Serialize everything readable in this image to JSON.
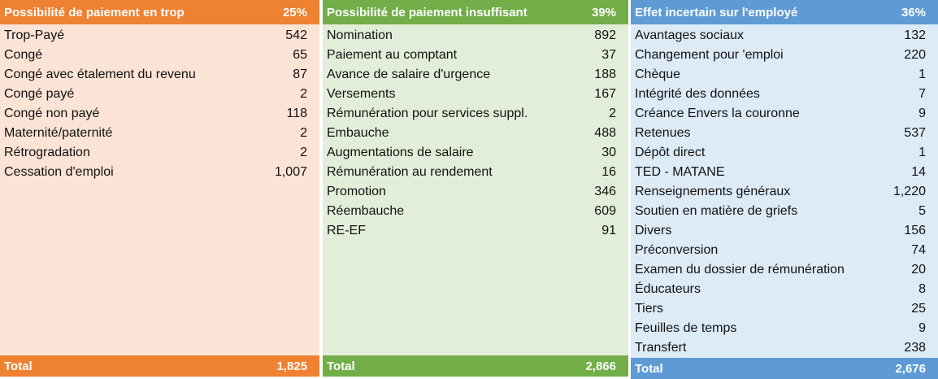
{
  "panels": [
    {
      "title": "Possibilité de paiement en trop",
      "percent": "25%",
      "rows": [
        {
          "label": "Trop-Payé",
          "value": "542"
        },
        {
          "label": "Congé",
          "value": "65"
        },
        {
          "label": "Congé avec étalement du revenu",
          "value": "87"
        },
        {
          "label": "Congé payé",
          "value": "2"
        },
        {
          "label": "Congé non payé",
          "value": "118"
        },
        {
          "label": "Maternité/paternité",
          "value": "2"
        },
        {
          "label": "Rétrogradation",
          "value": "2"
        },
        {
          "label": "Cessation d'emploi",
          "value": "1,007"
        }
      ],
      "total_label": "Total",
      "total_value": "1,825"
    },
    {
      "title": "Possibilité de paiement insuffisant",
      "percent": "39%",
      "rows": [
        {
          "label": "Nomination",
          "value": "892"
        },
        {
          "label": "Paiement au comptant",
          "value": "37"
        },
        {
          "label": "Avance de salaire d'urgence",
          "value": "188"
        },
        {
          "label": "Versements",
          "value": "167"
        },
        {
          "label": "Rémunération pour services suppl.",
          "value": "2"
        },
        {
          "label": "Embauche",
          "value": "488"
        },
        {
          "label": "Augmentations de salaire",
          "value": "30"
        },
        {
          "label": "Rémunération au rendement",
          "value": "16"
        },
        {
          "label": "Promotion",
          "value": "346"
        },
        {
          "label": "Réembauche",
          "value": "609"
        },
        {
          "label": "RE-EF",
          "value": "91"
        }
      ],
      "total_label": "Total",
      "total_value": "2,866"
    },
    {
      "title": "Effet incertain sur l'employé",
      "percent": "36%",
      "rows": [
        {
          "label": "Avantages sociaux",
          "value": "132"
        },
        {
          "label": "Changement pour 'emploi",
          "value": "220"
        },
        {
          "label": "Chèque",
          "value": "1"
        },
        {
          "label": "Intégrité des données",
          "value": "7"
        },
        {
          "label": "Créance Envers la couronne",
          "value": "9"
        },
        {
          "label": "Retenues",
          "value": "537"
        },
        {
          "label": "Dépôt direct",
          "value": "1"
        },
        {
          "label": "TED - MATANE",
          "value": "14"
        },
        {
          "label": "Renseignements généraux",
          "value": "1,220"
        },
        {
          "label": "Soutien en matière de griefs",
          "value": "5"
        },
        {
          "label": "Divers",
          "value": "156"
        },
        {
          "label": "Préconversion",
          "value": "74"
        },
        {
          "label": "Examen du dossier de rémunération",
          "value": "20"
        },
        {
          "label": "Éducateurs",
          "value": "8"
        },
        {
          "label": "Tiers",
          "value": "25"
        },
        {
          "label": "Feuilles de temps",
          "value": "9"
        },
        {
          "label": "Transfert",
          "value": "238"
        }
      ],
      "total_label": "Total",
      "total_value": "2,676"
    }
  ],
  "colors": {
    "overpayment_header": "#ef8132",
    "overpayment_body": "#fbe3d6",
    "underpayment_header": "#71ae48",
    "underpayment_body": "#e2eed9",
    "uncertain_header": "#5e9bd5",
    "uncertain_body": "#ddebf7"
  }
}
